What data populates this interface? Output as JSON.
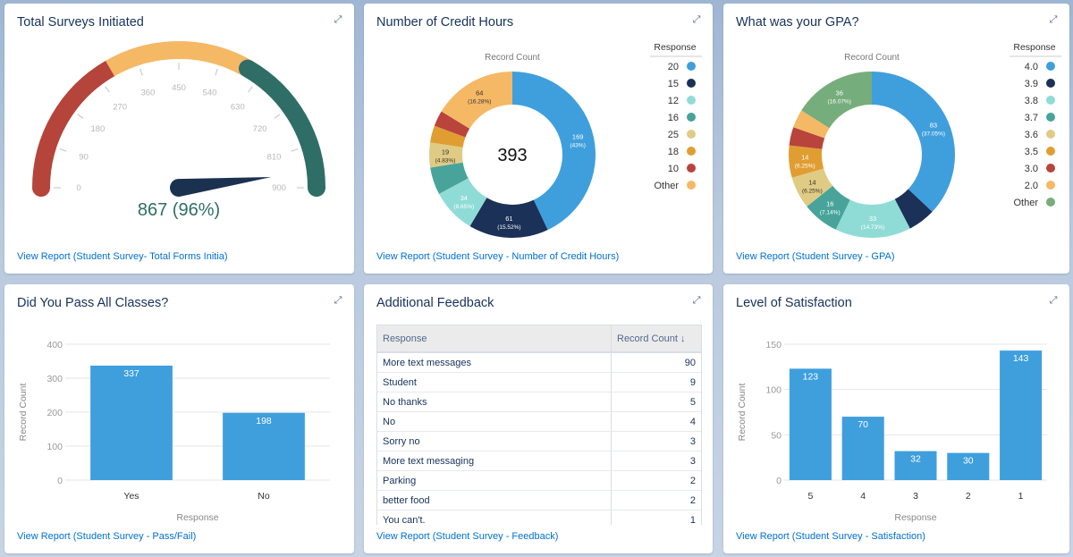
{
  "expand_icon": "expand-icon",
  "colors": {
    "blue": "#3f9fdc",
    "navy": "#1b3157",
    "light_teal": "#8fdcd6",
    "teal": "#48a49a",
    "yellow": "#e0cb84",
    "orange": "#e09e32",
    "red": "#b8443b",
    "peach": "#f5b865",
    "green": "#76ad7c",
    "link": "#0070d2"
  },
  "cards": {
    "gauge": {
      "title": "Total Surveys Initiated",
      "link": "View Report (Student Survey- Total Forms Initia)"
    },
    "credit": {
      "title": "Number of Credit Hours",
      "link": "View Report (Student Survey - Number of Credit Hours)"
    },
    "gpa": {
      "title": "What was your GPA?",
      "link": "View Report (Student Survey - GPA)"
    },
    "pass": {
      "title": "Did You Pass All Classes?",
      "link": "View Report (Student Survey - Pass/Fail)"
    },
    "feedback": {
      "title": "Additional Feedback",
      "link": "View Report (Student Survey - Feedback)"
    },
    "satisfaction": {
      "title": "Level of Satisfaction",
      "link": "View Report (Student Survey - Satisfaction)"
    }
  },
  "chart_data": [
    {
      "id": "gauge",
      "type": "gauge",
      "min": 0,
      "max": 900,
      "value": 867,
      "value_label": "867 (96%)",
      "ticks": [
        0,
        90,
        180,
        270,
        360,
        450,
        540,
        630,
        720,
        810,
        900
      ],
      "bands": [
        {
          "from": 0,
          "to": 300,
          "color": "#b5443b"
        },
        {
          "from": 300,
          "to": 600,
          "color": "#f5b865"
        },
        {
          "from": 600,
          "to": 900,
          "color": "#2e6e66"
        }
      ]
    },
    {
      "id": "credit",
      "type": "pie",
      "subtitle": "Record Count",
      "total_label": "393",
      "legend_title": "Response",
      "legend_position": "right",
      "slices": [
        {
          "response": "20",
          "value": 169,
          "label": "169",
          "pct": "(43%)",
          "color": "#3f9fdc"
        },
        {
          "response": "15",
          "value": 61,
          "label": "61",
          "pct": "(15.52%)",
          "color": "#1b3157"
        },
        {
          "response": "12",
          "value": 34,
          "label": "34",
          "pct": "(8.65%)",
          "color": "#8fdcd6"
        },
        {
          "response": "16",
          "value": 21,
          "color": "#48a49a"
        },
        {
          "response": "25",
          "value": 19,
          "label": "19",
          "pct": "(4.83%)",
          "color": "#e0cb84"
        },
        {
          "response": "18",
          "value": 13,
          "color": "#e09e32"
        },
        {
          "response": "10",
          "value": 12,
          "color": "#b8443b"
        },
        {
          "response": "Other",
          "value": 64,
          "label": "64",
          "pct": "(16.28%)",
          "color": "#f5b865"
        }
      ]
    },
    {
      "id": "gpa",
      "type": "pie",
      "subtitle": "Record Count",
      "legend_title": "Response",
      "legend_position": "right",
      "slices": [
        {
          "response": "4.0",
          "value": 83,
          "label": "83",
          "pct": "(37.05%)",
          "color": "#3f9fdc"
        },
        {
          "response": "3.9",
          "value": 12,
          "color": "#1b3157"
        },
        {
          "response": "3.8",
          "value": 33,
          "label": "33",
          "pct": "(14.73%)",
          "color": "#8fdcd6"
        },
        {
          "response": "3.7",
          "value": 16,
          "label": "16",
          "pct": "(7.14%)",
          "color": "#48a49a"
        },
        {
          "response": "3.6",
          "value": 14,
          "label": "14",
          "pct": "(6.25%)",
          "color": "#e0cb84"
        },
        {
          "response": "3.5",
          "value": 14,
          "label": "14",
          "pct": "(6.25%)",
          "color": "#e09e32"
        },
        {
          "response": "3.0",
          "value": 8,
          "color": "#b8443b"
        },
        {
          "response": "2.0",
          "value": 8,
          "color": "#f5b865"
        },
        {
          "response": "Other",
          "value": 36,
          "label": "36",
          "pct": "(16.07%)",
          "color": "#76ad7c"
        }
      ]
    },
    {
      "id": "pass",
      "type": "bar",
      "xlabel": "Response",
      "ylabel": "Record Count",
      "ylim": [
        0,
        400
      ],
      "yticks": [
        0,
        100,
        200,
        300,
        400
      ],
      "categories": [
        "Yes",
        "No"
      ],
      "values": [
        337,
        198
      ],
      "color": "#3f9fdc"
    },
    {
      "id": "feedback",
      "type": "table",
      "columns": [
        "Response",
        "Record Count"
      ],
      "sort_icon": "arrow-down-icon",
      "sort": "Record Count descending",
      "rows": [
        [
          "More text messages",
          90
        ],
        [
          "Student",
          9
        ],
        [
          "No thanks",
          5
        ],
        [
          "No",
          4
        ],
        [
          "Sorry no",
          3
        ],
        [
          "More text messaging",
          3
        ],
        [
          "Parking",
          2
        ],
        [
          "better food",
          2
        ],
        [
          "You can't.",
          1
        ]
      ]
    },
    {
      "id": "satisfaction",
      "type": "bar",
      "xlabel": "Response",
      "ylabel": "Record Count",
      "ylim": [
        0,
        150
      ],
      "yticks": [
        0,
        50,
        100,
        150
      ],
      "categories": [
        "5",
        "4",
        "3",
        "2",
        "1"
      ],
      "values": [
        123,
        70,
        32,
        30,
        143
      ],
      "color": "#3f9fdc"
    }
  ]
}
